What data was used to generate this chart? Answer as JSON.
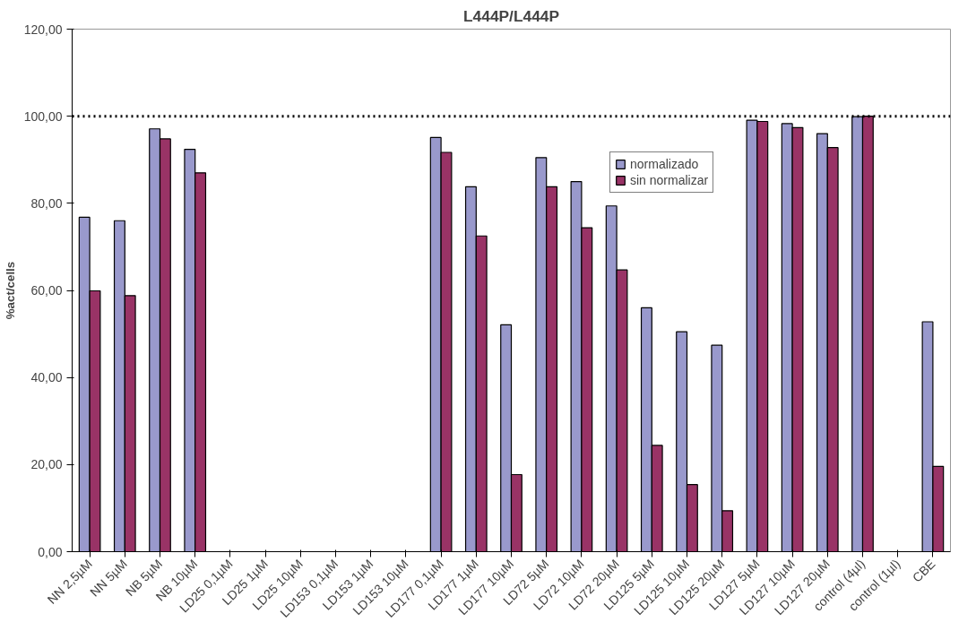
{
  "chart_data": {
    "type": "bar",
    "title": "L444P/L444P",
    "ylabel": "%act/cells",
    "categories": [
      "NN 2,5µM",
      "NN 5µM",
      "NB 5µM",
      "NB 10µM",
      "LD25 0,1µM",
      "LD25 1µM",
      "LD25 10µM",
      "LD153 0,1µM",
      "LD153 1µM",
      "LD153 10µM",
      "LD177 0,1µM",
      "LD177 1µM",
      "LD177 10µM",
      "LD72 5µM",
      "LD72 10µM",
      "LD72 20µM",
      "LD125 5µM",
      "LD125 10µM",
      "LD125 20µM",
      "LD127 5µM",
      "LD127 10µM",
      "LD127 20µM",
      "control (4µl)",
      "control (1µl)",
      "CBE"
    ],
    "series": [
      {
        "name": "normalizado",
        "color": "#9999cc",
        "values": [
          76.8,
          76.0,
          97.1,
          92.4,
          null,
          null,
          null,
          null,
          null,
          null,
          95.1,
          83.8,
          52.1,
          90.5,
          85.0,
          79.4,
          56.0,
          50.5,
          47.4,
          99.1,
          98.3,
          96.0,
          99.9,
          null,
          52.8
        ]
      },
      {
        "name": "sin normalizar",
        "color": "#993366",
        "values": [
          59.9,
          58.8,
          94.8,
          87.0,
          null,
          null,
          null,
          null,
          null,
          null,
          91.7,
          72.5,
          17.7,
          83.8,
          74.4,
          64.7,
          24.4,
          15.4,
          9.4,
          98.8,
          97.4,
          92.8,
          100.0,
          null,
          19.6
        ]
      }
    ],
    "ylim": [
      0,
      120
    ],
    "yticks": [
      {
        "value": 0,
        "label": "0,00"
      },
      {
        "value": 20,
        "label": "20,00"
      },
      {
        "value": 40,
        "label": "40,00"
      },
      {
        "value": 60,
        "label": "60,00"
      },
      {
        "value": 80,
        "label": "80,00"
      },
      {
        "value": 100,
        "label": "100,00"
      },
      {
        "value": 120,
        "label": "120,00"
      }
    ],
    "ref_lines": [
      {
        "axis": "y",
        "value": 100,
        "color": "#000000",
        "line_style": "dotted"
      }
    ],
    "legend": "top right",
    "grid": false
  }
}
